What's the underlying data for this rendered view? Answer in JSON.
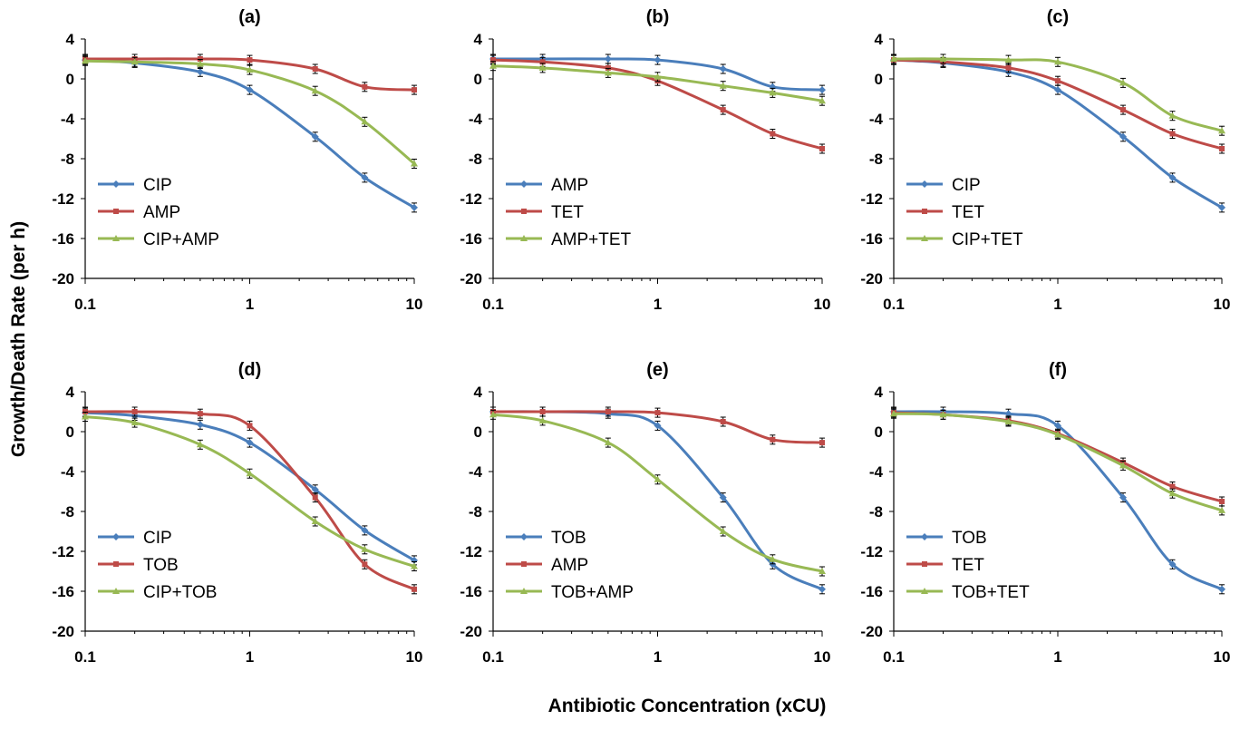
{
  "figure": {
    "xlabel": "Antibiotic Concentration (xCU)",
    "ylabel": "Growth/Death Rate (per h)"
  },
  "colors": {
    "blue": "#4a7ebb",
    "red": "#be4b48",
    "green": "#98b954"
  },
  "chart_data": [
    {
      "type": "line",
      "title": "(a)",
      "x": [
        0.1,
        0.2,
        0.5,
        1,
        2.5,
        5,
        10
      ],
      "xscale": "log",
      "xlim": [
        0.1,
        10
      ],
      "ylim": [
        -20,
        4
      ],
      "xticks": [
        "0.1",
        "1",
        "10"
      ],
      "yticks": [
        "4",
        "0",
        "-4",
        "-8",
        "-12",
        "-16",
        "-20"
      ],
      "legend": "lower-left",
      "grid": false,
      "series": [
        {
          "name": "CIP",
          "color": "blue",
          "marker": "diamond",
          "values": [
            1.9,
            1.6,
            0.7,
            -1.1,
            -5.8,
            -9.9,
            -12.9
          ]
        },
        {
          "name": "AMP",
          "color": "red",
          "marker": "square",
          "values": [
            2.0,
            2.0,
            2.0,
            1.9,
            1.0,
            -0.8,
            -1.1
          ]
        },
        {
          "name": "CIP+AMP",
          "color": "green",
          "marker": "triangle",
          "values": [
            1.8,
            1.7,
            1.5,
            0.9,
            -1.2,
            -4.3,
            -8.5
          ]
        }
      ]
    },
    {
      "type": "line",
      "title": "(b)",
      "x": [
        0.1,
        0.2,
        0.5,
        1,
        2.5,
        5,
        10
      ],
      "xscale": "log",
      "xlim": [
        0.1,
        10
      ],
      "ylim": [
        -20,
        4
      ],
      "xticks": [
        "0.1",
        "1",
        "10"
      ],
      "yticks": [
        "4",
        "0",
        "-4",
        "-8",
        "-12",
        "-16",
        "-20"
      ],
      "legend": "lower-left",
      "grid": false,
      "series": [
        {
          "name": "AMP",
          "color": "blue",
          "marker": "diamond",
          "values": [
            2.0,
            2.0,
            2.0,
            1.9,
            1.0,
            -0.8,
            -1.1
          ]
        },
        {
          "name": "TET",
          "color": "red",
          "marker": "square",
          "values": [
            1.9,
            1.7,
            1.1,
            -0.2,
            -3.1,
            -5.5,
            -7.0
          ]
        },
        {
          "name": "AMP+TET",
          "color": "green",
          "marker": "triangle",
          "values": [
            1.3,
            1.1,
            0.6,
            0.2,
            -0.7,
            -1.4,
            -2.2
          ]
        }
      ]
    },
    {
      "type": "line",
      "title": "(c)",
      "x": [
        0.1,
        0.2,
        0.5,
        1,
        2.5,
        5,
        10
      ],
      "xscale": "log",
      "xlim": [
        0.1,
        10
      ],
      "ylim": [
        -20,
        4
      ],
      "xticks": [
        "0.1",
        "1",
        "10"
      ],
      "yticks": [
        "4",
        "0",
        "-4",
        "-8",
        "-12",
        "-16",
        "-20"
      ],
      "legend": "lower-left",
      "grid": false,
      "series": [
        {
          "name": "CIP",
          "color": "blue",
          "marker": "diamond",
          "values": [
            1.9,
            1.6,
            0.7,
            -1.1,
            -5.8,
            -9.9,
            -12.9
          ]
        },
        {
          "name": "TET",
          "color": "red",
          "marker": "square",
          "values": [
            1.9,
            1.7,
            1.1,
            -0.2,
            -3.1,
            -5.5,
            -7.0
          ]
        },
        {
          "name": "CIP+TET",
          "color": "green",
          "marker": "triangle",
          "values": [
            2.0,
            2.0,
            1.9,
            1.7,
            -0.4,
            -3.7,
            -5.2
          ]
        }
      ]
    },
    {
      "type": "line",
      "title": "(d)",
      "x": [
        0.1,
        0.2,
        0.5,
        1,
        2.5,
        5,
        10
      ],
      "xscale": "log",
      "xlim": [
        0.1,
        10
      ],
      "ylim": [
        -20,
        4
      ],
      "xticks": [
        "0.1",
        "1",
        "10"
      ],
      "yticks": [
        "4",
        "0",
        "-4",
        "-8",
        "-12",
        "-16",
        "-20"
      ],
      "legend": "lower-left",
      "grid": false,
      "series": [
        {
          "name": "CIP",
          "color": "blue",
          "marker": "diamond",
          "values": [
            1.9,
            1.6,
            0.7,
            -1.1,
            -5.8,
            -9.9,
            -12.9
          ]
        },
        {
          "name": "TOB",
          "color": "red",
          "marker": "square",
          "values": [
            2.0,
            2.0,
            1.8,
            0.6,
            -6.6,
            -13.3,
            -15.8
          ]
        },
        {
          "name": "CIP+TOB",
          "color": "green",
          "marker": "triangle",
          "values": [
            1.5,
            0.9,
            -1.3,
            -4.2,
            -9.0,
            -11.8,
            -13.5
          ]
        }
      ]
    },
    {
      "type": "line",
      "title": "(e)",
      "x": [
        0.1,
        0.2,
        0.5,
        1,
        2.5,
        5,
        10
      ],
      "xscale": "log",
      "xlim": [
        0.1,
        10
      ],
      "ylim": [
        -20,
        4
      ],
      "xticks": [
        "0.1",
        "1",
        "10"
      ],
      "yticks": [
        "4",
        "0",
        "-4",
        "-8",
        "-12",
        "-16",
        "-20"
      ],
      "legend": "lower-left",
      "grid": false,
      "series": [
        {
          "name": "TOB",
          "color": "blue",
          "marker": "diamond",
          "values": [
            2.0,
            2.0,
            1.8,
            0.6,
            -6.6,
            -13.3,
            -15.8
          ]
        },
        {
          "name": "AMP",
          "color": "red",
          "marker": "square",
          "values": [
            2.0,
            2.0,
            2.0,
            1.9,
            1.0,
            -0.8,
            -1.1
          ]
        },
        {
          "name": "TOB+AMP",
          "color": "green",
          "marker": "triangle",
          "values": [
            1.7,
            1.1,
            -1.1,
            -4.8,
            -10.0,
            -12.8,
            -14.0
          ]
        }
      ]
    },
    {
      "type": "line",
      "title": "(f)",
      "x": [
        0.1,
        0.2,
        0.5,
        1,
        2.5,
        5,
        10
      ],
      "xscale": "log",
      "xlim": [
        0.1,
        10
      ],
      "ylim": [
        -20,
        4
      ],
      "xticks": [
        "0.1",
        "1",
        "10"
      ],
      "yticks": [
        "4",
        "0",
        "-4",
        "-8",
        "-12",
        "-16",
        "-20"
      ],
      "legend": "lower-left",
      "grid": false,
      "series": [
        {
          "name": "TOB",
          "color": "blue",
          "marker": "diamond",
          "values": [
            2.0,
            2.0,
            1.8,
            0.6,
            -6.6,
            -13.3,
            -15.8
          ]
        },
        {
          "name": "TET",
          "color": "red",
          "marker": "square",
          "values": [
            1.9,
            1.7,
            1.1,
            -0.2,
            -3.1,
            -5.5,
            -7.0
          ]
        },
        {
          "name": "TOB+TET",
          "color": "green",
          "marker": "triangle",
          "values": [
            1.8,
            1.7,
            1.0,
            -0.3,
            -3.4,
            -6.2,
            -7.9
          ]
        }
      ]
    }
  ]
}
